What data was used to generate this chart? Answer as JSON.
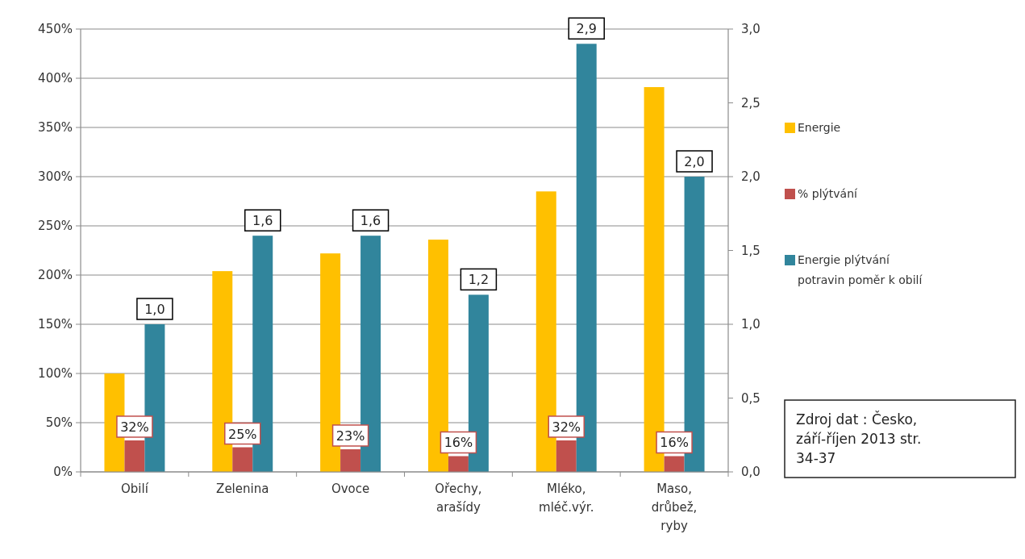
{
  "chart_data": {
    "type": "bar",
    "categories": [
      "Obilí",
      "Zelenina",
      "Ovoce",
      "Ořechy, arašídy",
      "Mléko, mléč.výr.",
      "Maso, drůbež, ryby"
    ],
    "series": [
      {
        "name": "Energie",
        "color": "#ffc000",
        "values": [
          100,
          204,
          222,
          236,
          285,
          391
        ]
      },
      {
        "name": "% plýtvání",
        "color": "#c0504d",
        "values": [
          32,
          25,
          23,
          16,
          32,
          16
        ],
        "value_labels": [
          "32%",
          "25%",
          "23%",
          "16%",
          "32%",
          "16%"
        ]
      },
      {
        "name": "Energie plýtvání potravin poměr k obilí",
        "color": "#31859c",
        "axis": "y2",
        "values": [
          1.0,
          1.6,
          1.6,
          1.2,
          2.9,
          2.0
        ],
        "value_labels": [
          "1,0",
          "1,6",
          "1,6",
          "1,2",
          "2,9",
          "2,0"
        ]
      }
    ],
    "ylim": [
      0,
      450
    ],
    "yticks": [
      {
        "value": 0,
        "label": "0%"
      },
      {
        "value": 50,
        "label": "50%"
      },
      {
        "value": 100,
        "label": "100%"
      },
      {
        "value": 150,
        "label": "150%"
      },
      {
        "value": 200,
        "label": "200%"
      },
      {
        "value": 250,
        "label": "250%"
      },
      {
        "value": 300,
        "label": "300%"
      },
      {
        "value": 350,
        "label": "350%"
      },
      {
        "value": 400,
        "label": "400%"
      },
      {
        "value": 450,
        "label": "450%"
      }
    ],
    "y2lim": [
      0,
      3
    ],
    "y2ticks": [
      {
        "value": 0,
        "label": "0,0"
      },
      {
        "value": 0.5,
        "label": "0,5"
      },
      {
        "value": 1,
        "label": "1,0"
      },
      {
        "value": 1.5,
        "label": "1,5"
      },
      {
        "value": 2,
        "label": "2,0"
      },
      {
        "value": 2.5,
        "label": "2,5"
      },
      {
        "value": 3,
        "label": "3,0"
      }
    ],
    "grid": "y",
    "legend": "right",
    "annotations": [
      "Zdroj dat : Česko, září-říjen 2013 str. 34-37"
    ]
  }
}
